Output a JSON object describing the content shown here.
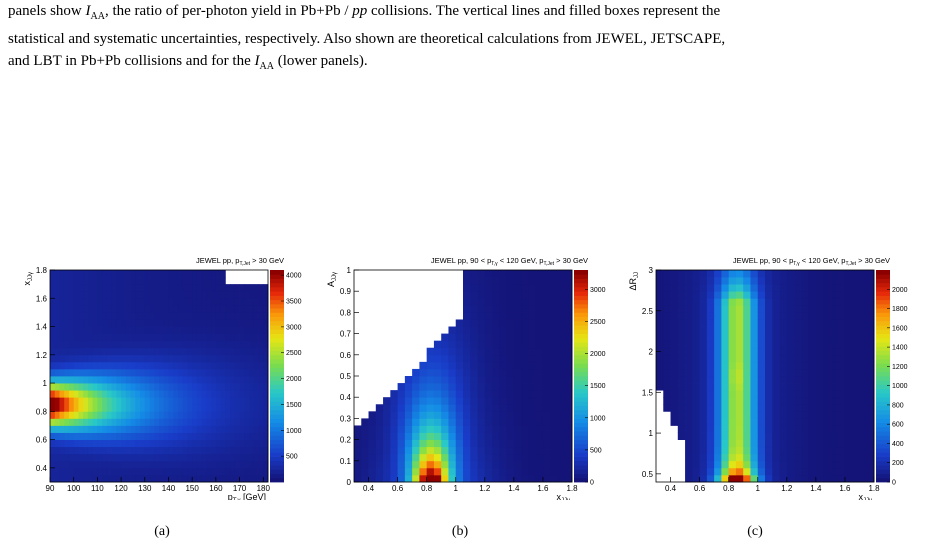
{
  "caption": {
    "line1_pre": "panels show ",
    "line1_symbol": "I",
    "line1_sub": "AA",
    "line1_post": ", the ratio of per-photon yield in Pb+Pb / ",
    "line1_pp": "pp",
    "line1_end": " collisions. The vertical lines and filled boxes represent the",
    "line2": "statistical and systematic uncertainties, respectively. Also shown are theoretical calculations from JEWEL, JETSCAPE,",
    "line3_pre": "and LBT in Pb+Pb collisions and for the ",
    "line3_symbol": "I",
    "line3_sub": "AA",
    "line3_post": " (lower panels)."
  },
  "panels": [
    {
      "id": "a",
      "sublabel": "(a)",
      "title": "JEWEL pp, p_{T,Jet} > 30 GeV",
      "title_parts": [
        "JEWEL pp, p",
        "T,Jet",
        " > 30 GeV"
      ],
      "xlabel_parts": [
        "p",
        "T,γ",
        " [GeV]"
      ],
      "ylabel_parts": [
        "x",
        "JJγ"
      ],
      "xticks": [
        "90",
        "100",
        "110",
        "120",
        "130",
        "140",
        "150",
        "160",
        "170",
        "180"
      ],
      "yticks": [
        "0.4",
        "0.6",
        "0.8",
        "1",
        "1.2",
        "1.4",
        "1.6",
        "1.8"
      ],
      "zticks": [
        "500",
        "1000",
        "1500",
        "2000",
        "2500",
        "3000",
        "3500",
        "4000"
      ]
    },
    {
      "id": "b",
      "sublabel": "(b)",
      "title_parts": [
        "JEWEL pp, 90 < p",
        "T,γ",
        " < 120 GeV, p",
        "T,Jet",
        " > 30 GeV"
      ],
      "xlabel_parts": [
        "x",
        "JJγ"
      ],
      "ylabel_parts": [
        "A",
        "JJγ"
      ],
      "xticks": [
        "0.4",
        "0.6",
        "0.8",
        "1",
        "1.2",
        "1.4",
        "1.6",
        "1.8"
      ],
      "yticks": [
        "0",
        "0.1",
        "0.2",
        "0.3",
        "0.4",
        "0.5",
        "0.6",
        "0.7",
        "0.8",
        "0.9",
        "1"
      ],
      "zticks": [
        "0",
        "500",
        "1000",
        "1500",
        "2000",
        "2500",
        "3000"
      ]
    },
    {
      "id": "c",
      "sublabel": "(c)",
      "title_parts": [
        "JEWEL pp, 90 < p",
        "T,γ",
        " < 120 GeV, p",
        "T,Jet",
        " > 30 GeV"
      ],
      "xlabel_parts": [
        "x",
        "JJγ"
      ],
      "ylabel_parts": [
        "ΔR",
        "JJ"
      ],
      "xticks": [
        "0.4",
        "0.6",
        "0.8",
        "1",
        "1.2",
        "1.4",
        "1.6",
        "1.8"
      ],
      "yticks": [
        "0.5",
        "1",
        "1.5",
        "2",
        "2.5",
        "3"
      ],
      "zticks": [
        "0",
        "200",
        "400",
        "600",
        "800",
        "1000",
        "1200",
        "1400",
        "1600",
        "1800",
        "2000"
      ]
    }
  ],
  "chart_data": [
    {
      "type": "heatmap",
      "title": "JEWEL pp, p_{T,Jet} > 30 GeV",
      "xlabel": "p_{T,γ} [GeV]",
      "ylabel": "x_{JJγ}",
      "xlim": [
        90,
        182
      ],
      "ylim": [
        0.3,
        1.8
      ],
      "zlim": [
        0,
        4100
      ],
      "peak": {
        "x": 100,
        "y": 0.85,
        "z": 4000
      },
      "colormap": "rainbow"
    },
    {
      "type": "heatmap",
      "title": "JEWEL pp, 90 < p_{T,γ} < 120 GeV, p_{T,Jet} > 30 GeV",
      "xlabel": "x_{JJγ}",
      "ylabel": "A_{JJγ}",
      "xlim": [
        0.3,
        1.8
      ],
      "ylim": [
        0,
        1
      ],
      "zlim": [
        0,
        3300
      ],
      "peak": {
        "x": 0.82,
        "y": 0.12,
        "z": 3300
      },
      "colormap": "rainbow"
    },
    {
      "type": "heatmap",
      "title": "JEWEL pp, 90 < p_{T,γ} < 120 GeV, p_{T,Jet} > 30 GeV",
      "xlabel": "x_{JJγ}",
      "ylabel": "ΔR_{JJ}",
      "xlim": [
        0.3,
        1.8
      ],
      "ylim": [
        0.4,
        3
      ],
      "zlim": [
        0,
        2200
      ],
      "peak": {
        "x": 0.85,
        "y": 0.45,
        "z": 2200
      },
      "colormap": "rainbow"
    }
  ]
}
